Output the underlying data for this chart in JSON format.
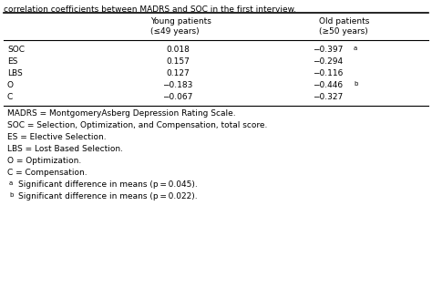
{
  "title_line": "correlation coefficients between MADRS and SOC in the first interview.",
  "col_headers": [
    [
      "Young patients",
      "(≤49 years)"
    ],
    [
      "Old patients",
      "(≥50 years)"
    ]
  ],
  "row_labels": [
    "SOC",
    "ES",
    "LBS",
    "O",
    "C"
  ],
  "young_values": [
    "0.018",
    "0.157",
    "0.127",
    "−0.183",
    "−0.067"
  ],
  "old_values": [
    "−0.397",
    "−0.294",
    "−0.116",
    "−0.446",
    "−0.327"
  ],
  "old_superscripts": [
    "a",
    "",
    "",
    "b",
    ""
  ],
  "footnotes": [
    "MADRS = MontgomeryAsberg Depression Rating Scale.",
    "SOC = Selection, Optimization, and Compensation, total score.",
    "ES = Elective Selection.",
    "LBS = Lost Based Selection.",
    "O = Optimization.",
    "C = Compensation."
  ],
  "sup_footnotes": [
    "Significant difference in means (p = 0.045).",
    "Significant difference in means (p = 0.022)."
  ],
  "bg_color": "#ffffff",
  "text_color": "#000000",
  "font_size": 6.5,
  "sup_font_size": 5.0
}
